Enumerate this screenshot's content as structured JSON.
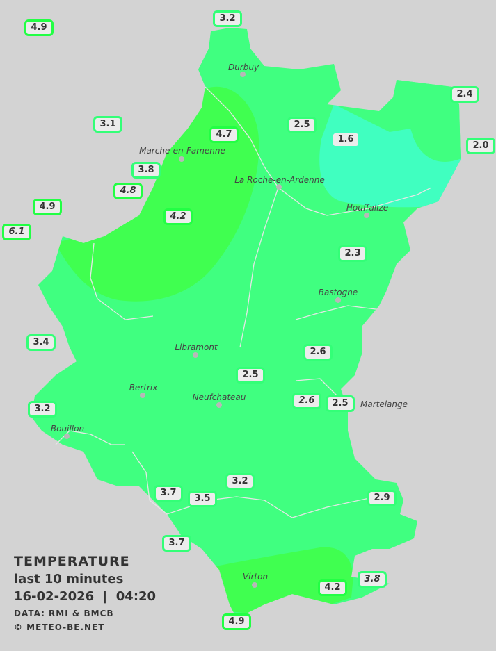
{
  "legend": {
    "title": "TEMPERATURE",
    "subtitle": "last 10 minutes",
    "datetime": "16-02-2026  |  04:20",
    "data_source": "DATA: RMI & BMCB",
    "copyright": "© METEO-BE.NET"
  },
  "colors": {
    "background": "#d3d3d3",
    "band_2_to_3": "#40ff80",
    "band_below_2": "#40ffc0",
    "band_above_4": "#40ff50"
  },
  "cities": [
    "Durbuy",
    "Marche-en-Famenne",
    "La Roche-en-Ardenne",
    "Houffalize",
    "Bastogne",
    "Libramont",
    "Bertrix",
    "Neufchateau",
    "Martelange",
    "Bouillon",
    "Virton"
  ],
  "stations": [
    {
      "value": "4.9"
    },
    {
      "value": "3.2"
    },
    {
      "value": "3.1"
    },
    {
      "value": "4.7"
    },
    {
      "value": "2.5"
    },
    {
      "value": "1.6"
    },
    {
      "value": "2.4"
    },
    {
      "value": "2.0"
    },
    {
      "value": "3.8"
    },
    {
      "value": "4.8"
    },
    {
      "value": "4.9"
    },
    {
      "value": "6.1"
    },
    {
      "value": "4.2"
    },
    {
      "value": "2.3"
    },
    {
      "value": "3.4"
    },
    {
      "value": "2.6"
    },
    {
      "value": "2.5"
    },
    {
      "value": "2.6"
    },
    {
      "value": "2.5"
    },
    {
      "value": "3.2"
    },
    {
      "value": "3.2"
    },
    {
      "value": "3.7"
    },
    {
      "value": "3.5"
    },
    {
      "value": "2.9"
    },
    {
      "value": "3.7"
    },
    {
      "value": "3.8"
    },
    {
      "value": "4.2"
    },
    {
      "value": "4.9"
    }
  ]
}
